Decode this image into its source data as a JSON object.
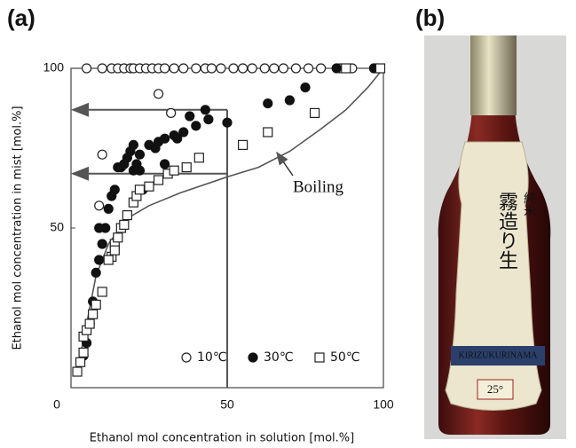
{
  "chart_data": {
    "type": "scatter",
    "panel_labels": [
      "(a)",
      "(b)"
    ],
    "x_label": "Ethanol mol concentration in solution [mol.%]",
    "y_label": "Ethanol mol concentration in mist [mol.%]",
    "xlim": [
      0,
      100
    ],
    "ylim": [
      0,
      100
    ],
    "xticks": [
      0,
      50,
      100
    ],
    "yticks": [
      50,
      100
    ],
    "series": [
      {
        "name": "10℃",
        "marker": "open-circle",
        "color": "#222222",
        "x": [
          5,
          10,
          13,
          15,
          17,
          19,
          20,
          22,
          24,
          26,
          28,
          30,
          33,
          36,
          40,
          43,
          45,
          48,
          52,
          55,
          58,
          62,
          65,
          68,
          72,
          76,
          80,
          86,
          90,
          97,
          28,
          32,
          10,
          9
        ],
        "values": [
          100,
          100,
          100,
          100,
          100,
          100,
          100,
          100,
          100,
          100,
          100,
          100,
          100,
          100,
          100,
          100,
          100,
          100,
          100,
          100,
          100,
          100,
          100,
          100,
          100,
          100,
          100,
          100,
          100,
          100,
          92,
          86,
          73,
          57
        ]
      },
      {
        "name": "30℃",
        "marker": "filled-circle",
        "color": "#111111",
        "x": [
          63,
          70,
          75,
          50,
          43,
          44,
          40,
          38,
          36,
          34,
          33,
          30,
          28,
          27,
          25,
          22,
          20,
          19,
          18,
          17,
          16,
          15,
          14,
          13,
          12,
          11,
          9,
          10,
          9,
          8,
          7,
          6,
          5,
          4,
          85,
          97,
          98,
          30,
          20,
          22,
          23,
          21
        ],
        "values": [
          89,
          90,
          94,
          83,
          87,
          84,
          82,
          85,
          80,
          78,
          79,
          78,
          77,
          75,
          76,
          73,
          76,
          74,
          72,
          70,
          69,
          69,
          62,
          60,
          56,
          50,
          50,
          45,
          40,
          36,
          27,
          20,
          14,
          10,
          100,
          100,
          100,
          70,
          68,
          68,
          62,
          70
        ]
      },
      {
        "name": "50℃",
        "marker": "open-square",
        "color": "#222222",
        "x": [
          2,
          3,
          4,
          4,
          5,
          6,
          7,
          8,
          10,
          13,
          14,
          15,
          16,
          17,
          18,
          20,
          21,
          22,
          25,
          28,
          31,
          33,
          37,
          41,
          55,
          63,
          78,
          88,
          99,
          14,
          12
        ],
        "values": [
          5,
          8,
          11,
          16,
          18,
          20,
          23,
          26,
          30,
          41,
          45,
          47,
          50,
          51,
          54,
          58,
          60,
          62,
          63,
          65,
          67,
          68,
          69,
          72,
          76,
          80,
          86,
          100,
          100,
          43,
          40
        ]
      }
    ],
    "boiling_curve": {
      "label": "Boiling",
      "color": "#555555",
      "x": [
        2,
        5,
        8,
        12,
        18,
        25,
        35,
        50,
        60,
        70,
        80,
        88,
        95,
        100
      ],
      "values": [
        5,
        20,
        35,
        45,
        53,
        57,
        61,
        66,
        69,
        74,
        81,
        87,
        94,
        100
      ]
    },
    "guides": {
      "x": 50,
      "y": [
        87,
        67
      ],
      "color": "#555555"
    },
    "photo": {
      "brand": "KIRIZUKURINAMA",
      "strength": "25°",
      "label_top": "純米",
      "label_main": "霧造り生"
    }
  }
}
